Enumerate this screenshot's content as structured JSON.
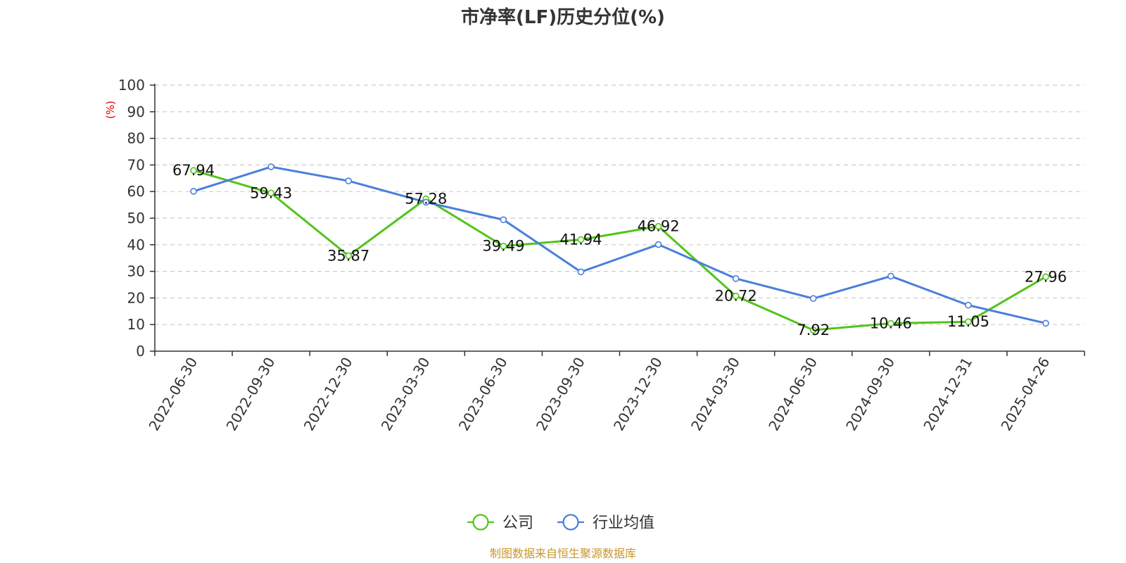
{
  "chart_data": {
    "type": "line",
    "title": "市净率(LF)历史分位(%)",
    "ylabel": "(%)",
    "ylim": [
      0,
      100
    ],
    "yticks": [
      0,
      10,
      20,
      30,
      40,
      50,
      60,
      70,
      80,
      90,
      100
    ],
    "grid": true,
    "legend_position": "bottom-center",
    "categories": [
      "2022-06-30",
      "2022-09-30",
      "2022-12-30",
      "2023-03-30",
      "2023-06-30",
      "2023-09-30",
      "2023-12-30",
      "2024-03-30",
      "2024-06-30",
      "2024-09-30",
      "2024-12-31",
      "2025-04-26"
    ],
    "series": [
      {
        "name": "公司",
        "color": "#52c41a",
        "values": [
          67.94,
          59.43,
          35.87,
          57.28,
          39.49,
          41.94,
          46.92,
          20.72,
          7.92,
          10.46,
          11.05,
          27.96
        ],
        "show_labels": true
      },
      {
        "name": "行业均值",
        "color": "#4a7fdc",
        "values": [
          60.1,
          69.3,
          64.0,
          56.0,
          49.4,
          29.8,
          40.1,
          27.3,
          19.8,
          28.2,
          17.3,
          10.5
        ],
        "show_labels": false
      }
    ]
  },
  "colors": {
    "unit_label": "#e00000",
    "source_text": "#c8962a",
    "grid": "#cccccc",
    "axis": "#333333"
  },
  "source": "制图数据来自恒生聚源数据库"
}
